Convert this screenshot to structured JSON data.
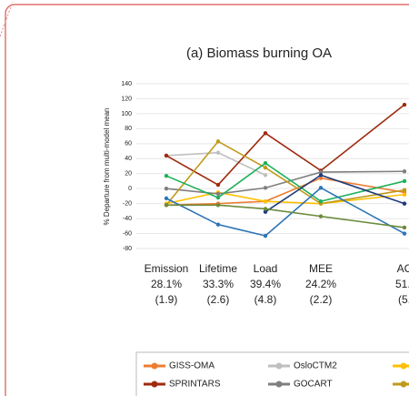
{
  "chart_data": {
    "type": "line",
    "title": "(a) Biomass burning OA",
    "y_label": "% Departure from multi-model mean",
    "categories": [
      "Emission",
      "Lifetime",
      "Load",
      "MEE",
      "AC"
    ],
    "category_percent": [
      "28.1%",
      "33.3%",
      "39.4%",
      "24.2%",
      "51.:"
    ],
    "category_sd": [
      "(1.9)",
      "(2.6)",
      "(4.8)",
      "(2.2)",
      "(5."
    ],
    "ylim": [
      -80,
      140
    ],
    "yticks": [
      -80,
      -60,
      -40,
      -20,
      0,
      20,
      40,
      60,
      80,
      100,
      120,
      140
    ],
    "grid": true,
    "series": [
      {
        "name": "GISS-OMA",
        "color": "#ed7d31",
        "values": [
          -22,
          -20,
          -17,
          14,
          -5
        ]
      },
      {
        "name": "OsloCTM2",
        "color": "#bfbfbf",
        "values": [
          44,
          48,
          18,
          null,
          null
        ]
      },
      {
        "color": "#ffc000",
        "values": [
          -20,
          -5,
          -17,
          -20,
          -8
        ]
      },
      {
        "name": "SPRINTARS",
        "color": "#9e2a0e",
        "values": [
          44,
          5,
          74,
          24,
          112
        ]
      },
      {
        "name": "GOCART",
        "color": "#7f7f7f",
        "values": [
          0,
          -7,
          1,
          22,
          23
        ]
      },
      {
        "color": "#c09a1a",
        "values": [
          -22,
          63,
          28,
          -20,
          -2
        ]
      },
      {
        "color": "#1db15a",
        "values": [
          17,
          -12,
          34,
          -17,
          10
        ]
      },
      {
        "color": "#2e75b6",
        "values": [
          -13,
          -48,
          -63,
          1,
          -60
        ]
      },
      {
        "color": "#1f3a7a",
        "values": [
          null,
          null,
          -31,
          18,
          -20
        ]
      },
      {
        "color": "#6a8a3a",
        "values": [
          -22,
          -22,
          -27,
          -37,
          -52
        ]
      }
    ]
  }
}
